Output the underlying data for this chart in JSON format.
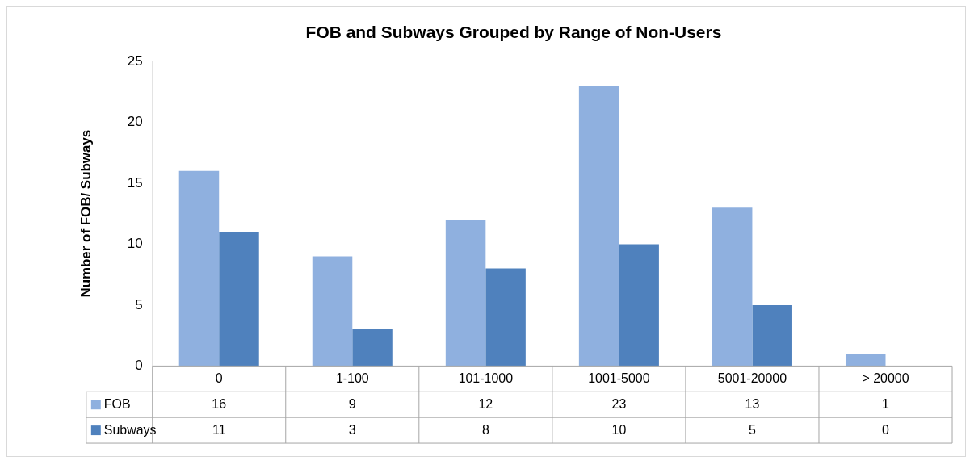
{
  "chart_data": {
    "type": "bar",
    "title": "FOB and Subways Grouped by Range of Non-Users",
    "ylabel": "Number of FOB/ Subways",
    "categories": [
      "0",
      "1-100",
      "101-1000",
      "1001-5000",
      "5001-20000",
      "> 20000"
    ],
    "series": [
      {
        "name": "FOB",
        "color": "#8fb0df",
        "values": [
          16,
          9,
          12,
          23,
          13,
          1
        ]
      },
      {
        "name": "Subways",
        "color": "#4f81bd",
        "values": [
          11,
          3,
          8,
          10,
          5,
          0
        ]
      }
    ],
    "ylim": [
      0,
      25
    ],
    "yticks": [
      0,
      5,
      10,
      15,
      20,
      25
    ],
    "grid": false,
    "legend": "bottom",
    "data_labels": true
  }
}
